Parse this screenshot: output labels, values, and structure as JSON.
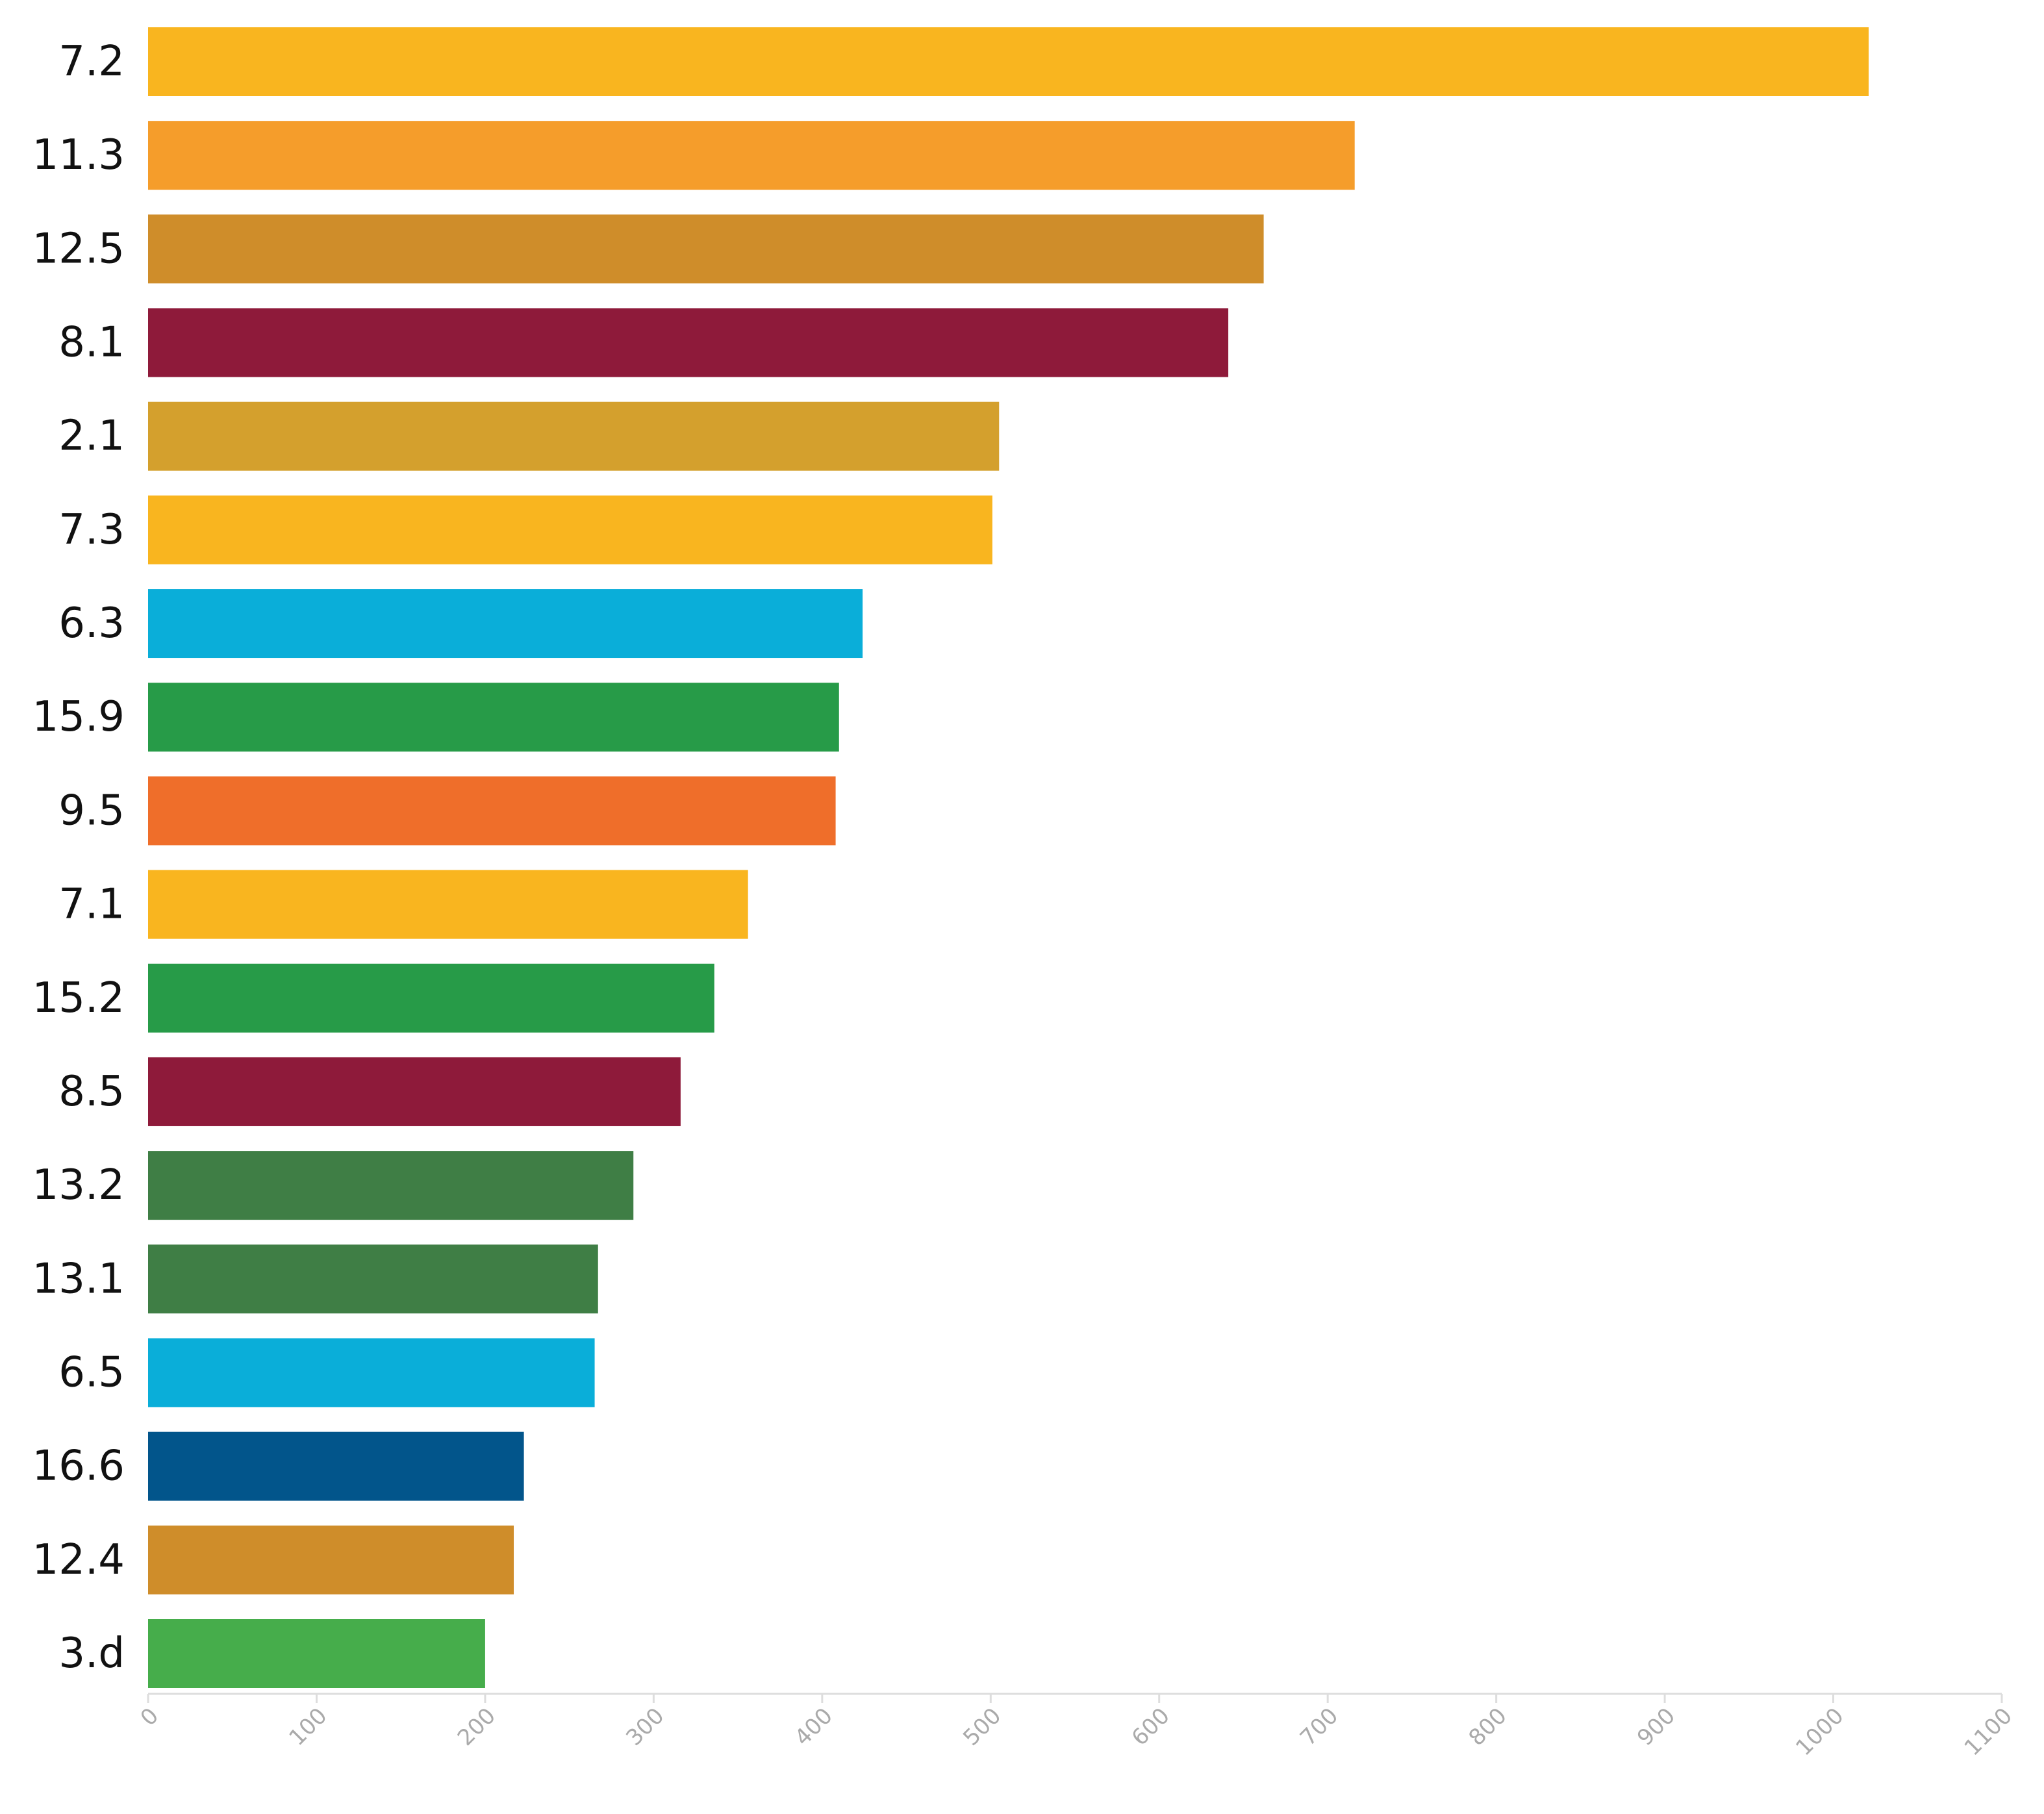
{
  "chart_data": {
    "type": "bar",
    "orientation": "horizontal",
    "title": "",
    "xlabel": "",
    "ylabel": "",
    "xlim": [
      0,
      1100
    ],
    "x_ticks": [
      0,
      100,
      200,
      300,
      400,
      500,
      600,
      700,
      800,
      900,
      1000,
      1100
    ],
    "grid": false,
    "legend": "none",
    "categories": [
      "7.2",
      "11.3",
      "12.5",
      "8.1",
      "2.1",
      "7.3",
      "6.3",
      "15.9",
      "9.5",
      "7.1",
      "15.2",
      "8.5",
      "13.2",
      "13.1",
      "6.5",
      "16.6",
      "12.4",
      "3.d"
    ],
    "values": [
      1021,
      716,
      662,
      641,
      505,
      501,
      424,
      410,
      408,
      356,
      336,
      316,
      288,
      267,
      265,
      223,
      217,
      200
    ],
    "colors": [
      "#f9b51f",
      "#f59d2b",
      "#cf8d2a",
      "#8e1a3a",
      "#d4a02d",
      "#f9b51f",
      "#0aaed9",
      "#279b48",
      "#ef6e2a",
      "#f9b51f",
      "#279b48",
      "#8e1a3a",
      "#3f7e45",
      "#3f7e45",
      "#0aaed9",
      "#02558b",
      "#cf8d2a",
      "#46ad4b"
    ]
  }
}
